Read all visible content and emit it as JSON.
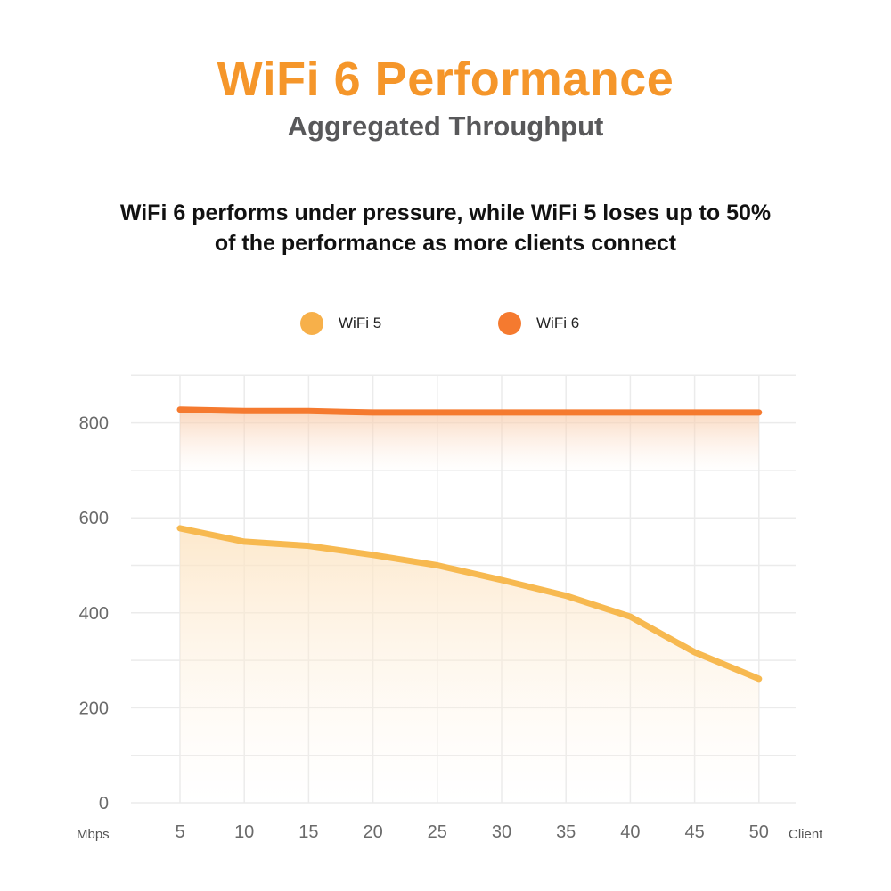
{
  "header": {
    "title": "WiFi 6 Performance",
    "subtitle": "Aggregated Throughput",
    "tagline_line1": "WiFi 6 performs under pressure, while WiFi 5 loses up to 50%",
    "tagline_line2": "of the performance as more clients connect"
  },
  "legend": [
    {
      "label": "WiFi 5",
      "color": "#f7b04a"
    },
    {
      "label": "WiFi 6",
      "color": "#f57a2f"
    }
  ],
  "axes": {
    "y_unit": "Mbps",
    "x_unit": "Client",
    "y_ticks": [
      "0",
      "200",
      "400",
      "600",
      "800"
    ],
    "x_ticks": [
      "5",
      "10",
      "15",
      "20",
      "25",
      "30",
      "35",
      "40",
      "45",
      "50"
    ]
  },
  "colors": {
    "title": "#f5962a",
    "subtitle": "#58585a",
    "wifi5": "#f7b950",
    "wifi6": "#f57a2f",
    "grid": "#ebebeb"
  },
  "chart_data": {
    "type": "area",
    "title": "WiFi 6 Performance",
    "subtitle": "Aggregated Throughput",
    "xlabel": "Client",
    "ylabel": "Mbps",
    "x": [
      5,
      10,
      15,
      20,
      25,
      30,
      35,
      40,
      45,
      50
    ],
    "categories": [
      "5",
      "10",
      "15",
      "20",
      "25",
      "30",
      "35",
      "40",
      "45",
      "50"
    ],
    "series": [
      {
        "name": "WiFi 5",
        "color": "#f7b950",
        "values": [
          578,
          550,
          541,
          522,
          500,
          469,
          436,
          392,
          317,
          261
        ]
      },
      {
        "name": "WiFi 6",
        "color": "#f57a2f",
        "values": [
          828,
          825,
          825,
          822,
          822,
          822,
          822,
          822,
          822,
          822
        ]
      }
    ],
    "ylim": [
      0,
      900
    ],
    "y_ticks": [
      0,
      200,
      400,
      600,
      800
    ],
    "grid": true,
    "legend_position": "top"
  }
}
